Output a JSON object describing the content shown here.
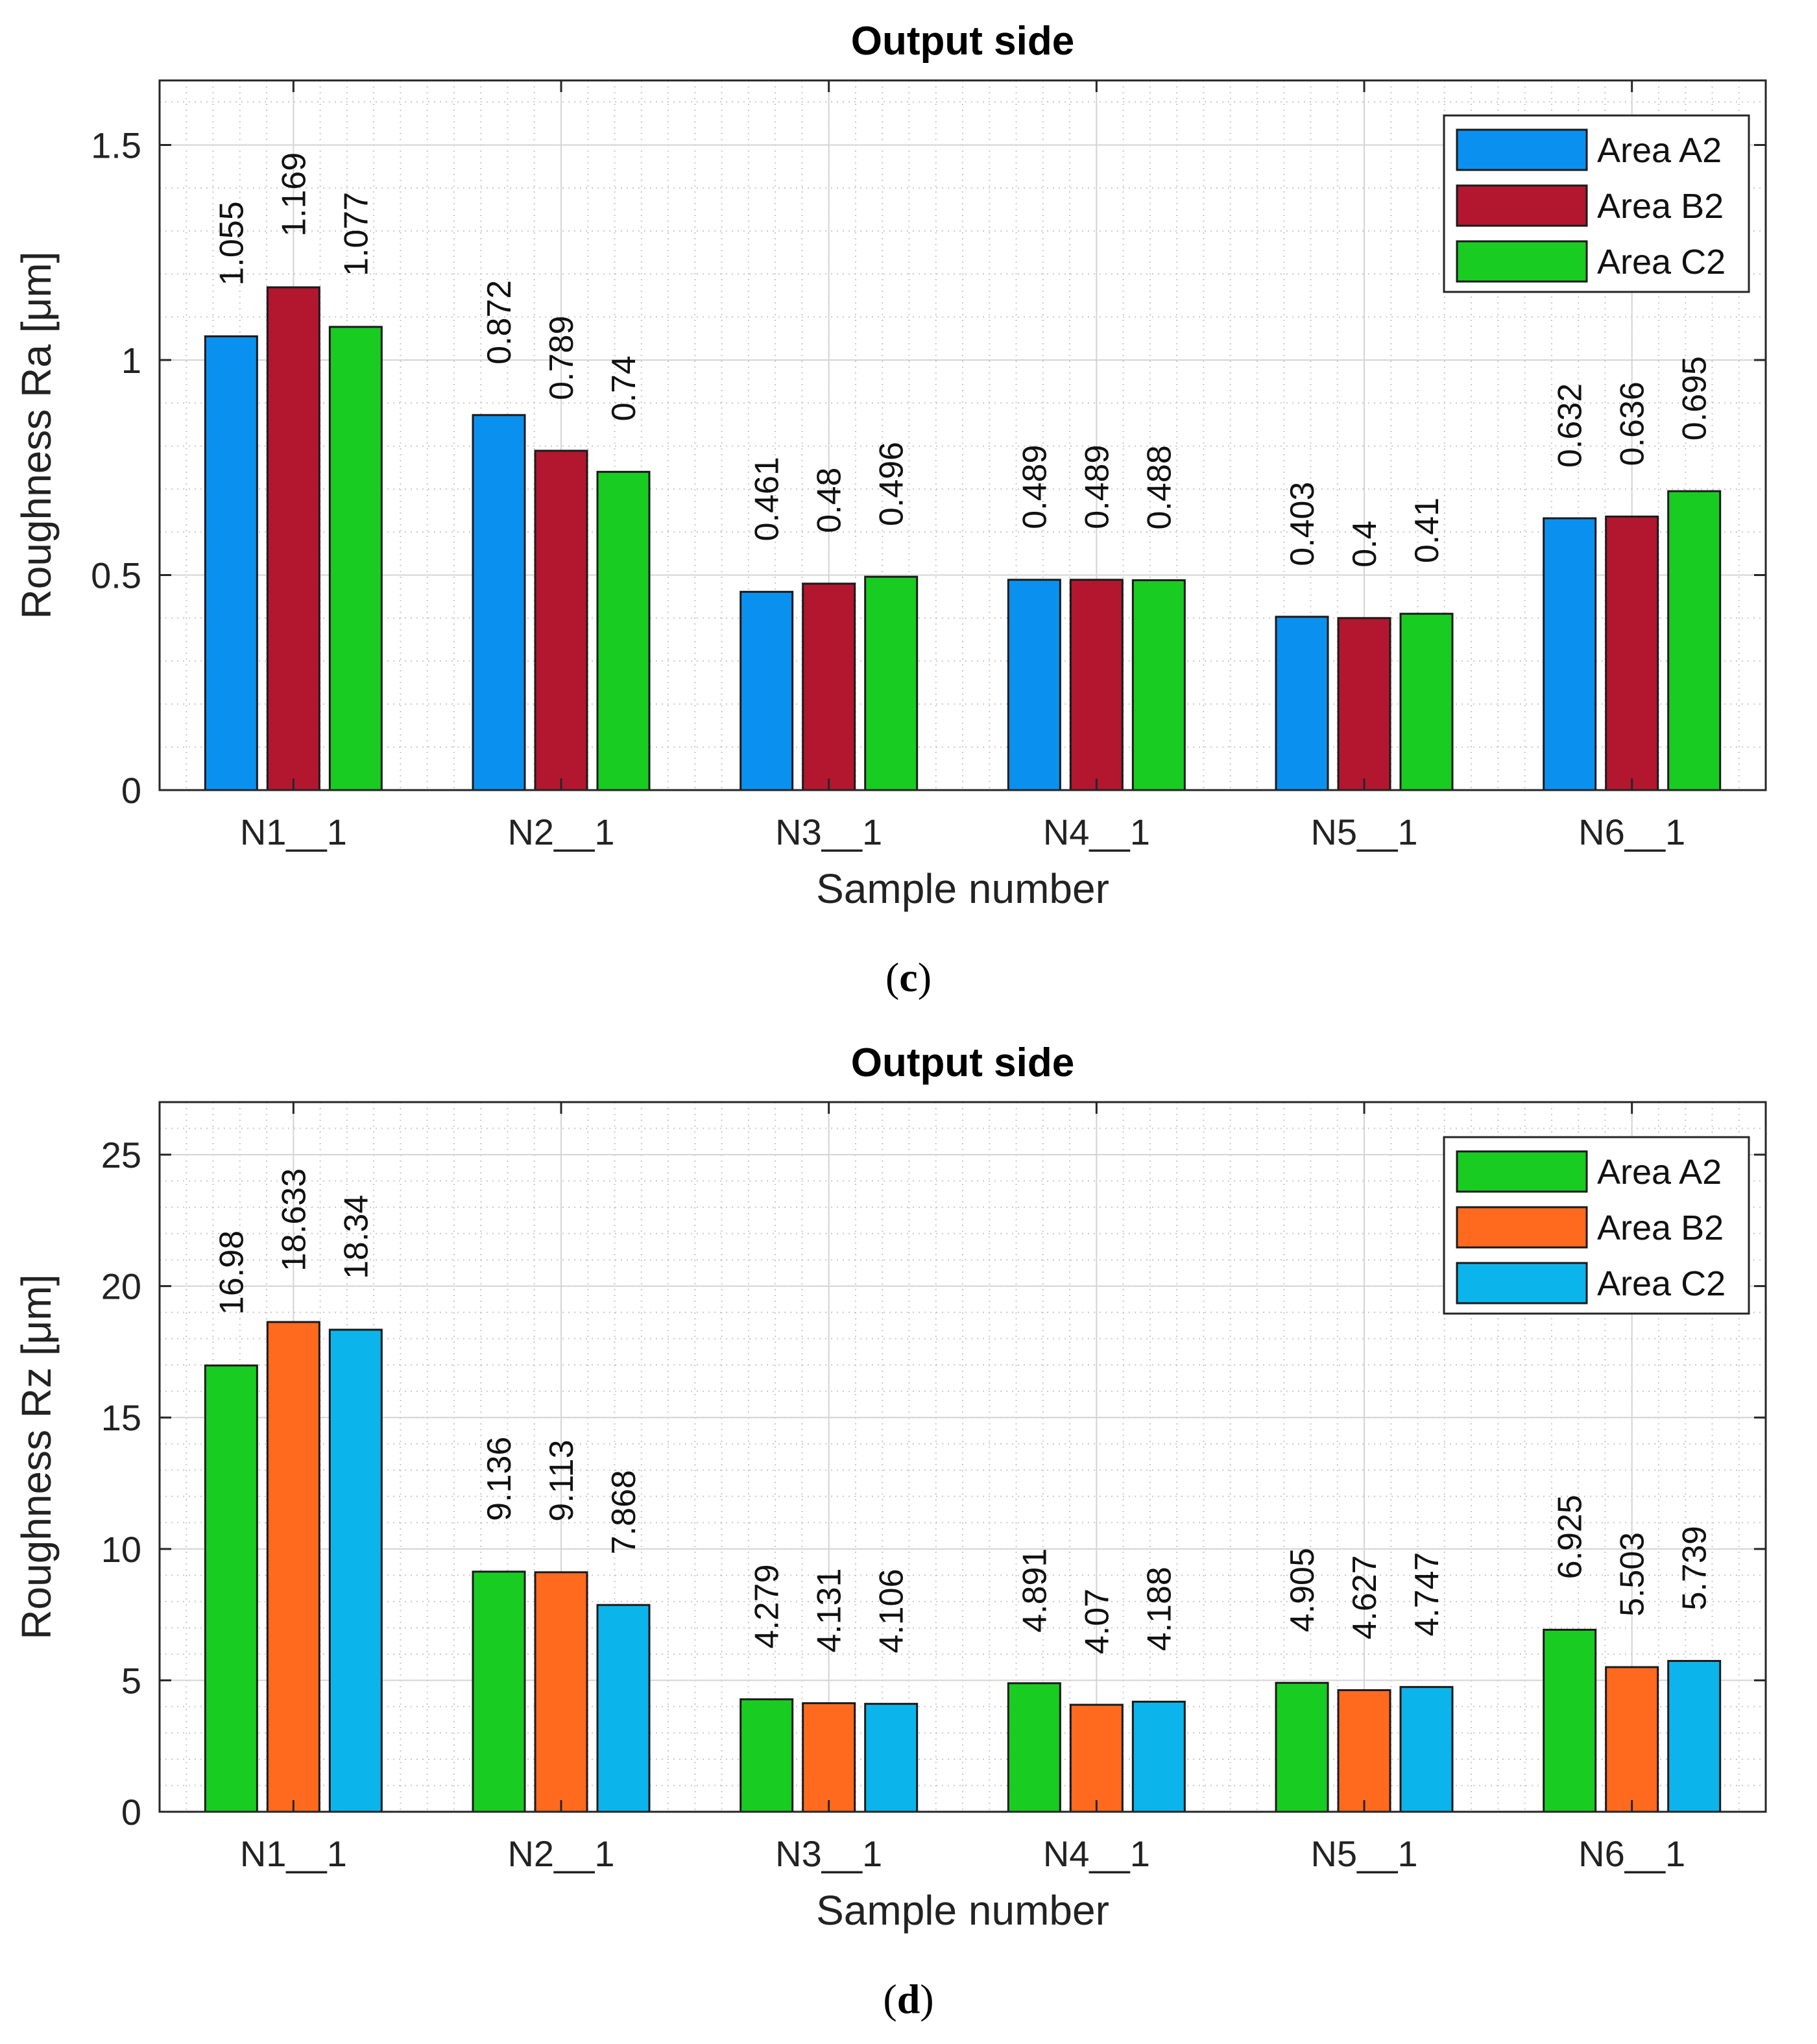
{
  "chart_data": [
    {
      "panel_label": "c",
      "type": "bar",
      "title": "Output side",
      "xlabel": "Sample number",
      "ylabel": "Roughness Ra [μm]",
      "ylim": [
        0,
        1.65
      ],
      "yticks": [
        0,
        0.5,
        1,
        1.5
      ],
      "ytick_labels": [
        "0",
        "0.5",
        "1",
        "1.5"
      ],
      "grid": true,
      "legend_position": "top-right",
      "categories": [
        "N1__1",
        "N2__1",
        "N3__1",
        "N4__1",
        "N5__1",
        "N6__1"
      ],
      "series": [
        {
          "name": "Area A2",
          "color": "#0a91f0",
          "values": [
            1.055,
            0.872,
            0.461,
            0.489,
            0.403,
            0.632
          ],
          "labels": [
            "1.055",
            "0.872",
            "0.461",
            "0.489",
            "0.403",
            "0.632"
          ]
        },
        {
          "name": "Area B2",
          "color": "#b2172f",
          "values": [
            1.169,
            0.789,
            0.48,
            0.489,
            0.4,
            0.636
          ],
          "labels": [
            "1.169",
            "0.789",
            "0.48",
            "0.489",
            "0.4",
            "0.636"
          ]
        },
        {
          "name": "Area C2",
          "color": "#19cc22",
          "values": [
            1.077,
            0.74,
            0.496,
            0.488,
            0.41,
            0.695
          ],
          "labels": [
            "1.077",
            "0.74",
            "0.496",
            "0.488",
            "0.41",
            "0.695"
          ]
        }
      ]
    },
    {
      "panel_label": "d",
      "type": "bar",
      "title": "Output side",
      "xlabel": "Sample number",
      "ylabel": "Roughness Rz [μm]",
      "ylim": [
        0,
        27
      ],
      "yticks": [
        0,
        5,
        10,
        15,
        20,
        25
      ],
      "ytick_labels": [
        "0",
        "5",
        "10",
        "15",
        "20",
        "25"
      ],
      "grid": true,
      "legend_position": "top-right",
      "categories": [
        "N1__1",
        "N2__1",
        "N3__1",
        "N4__1",
        "N5__1",
        "N6__1"
      ],
      "series": [
        {
          "name": "Area A2",
          "color": "#19cc22",
          "values": [
            16.98,
            9.136,
            4.279,
            4.891,
            4.905,
            6.925
          ],
          "labels": [
            "16.98",
            "9.136",
            "4.279",
            "4.891",
            "4.905",
            "6.925"
          ]
        },
        {
          "name": "Area B2",
          "color": "#ff6a1f",
          "values": [
            18.633,
            9.113,
            4.131,
            4.07,
            4.627,
            5.503
          ],
          "labels": [
            "18.633",
            "9.113",
            "4.131",
            "4.07",
            "4.627",
            "5.503"
          ]
        },
        {
          "name": "Area C2",
          "color": "#0bb5ec",
          "values": [
            18.34,
            7.868,
            4.106,
            4.188,
            4.747,
            5.739
          ],
          "labels": [
            "18.34",
            "7.868",
            "4.106",
            "4.188",
            "4.747",
            "5.739"
          ]
        }
      ]
    }
  ]
}
